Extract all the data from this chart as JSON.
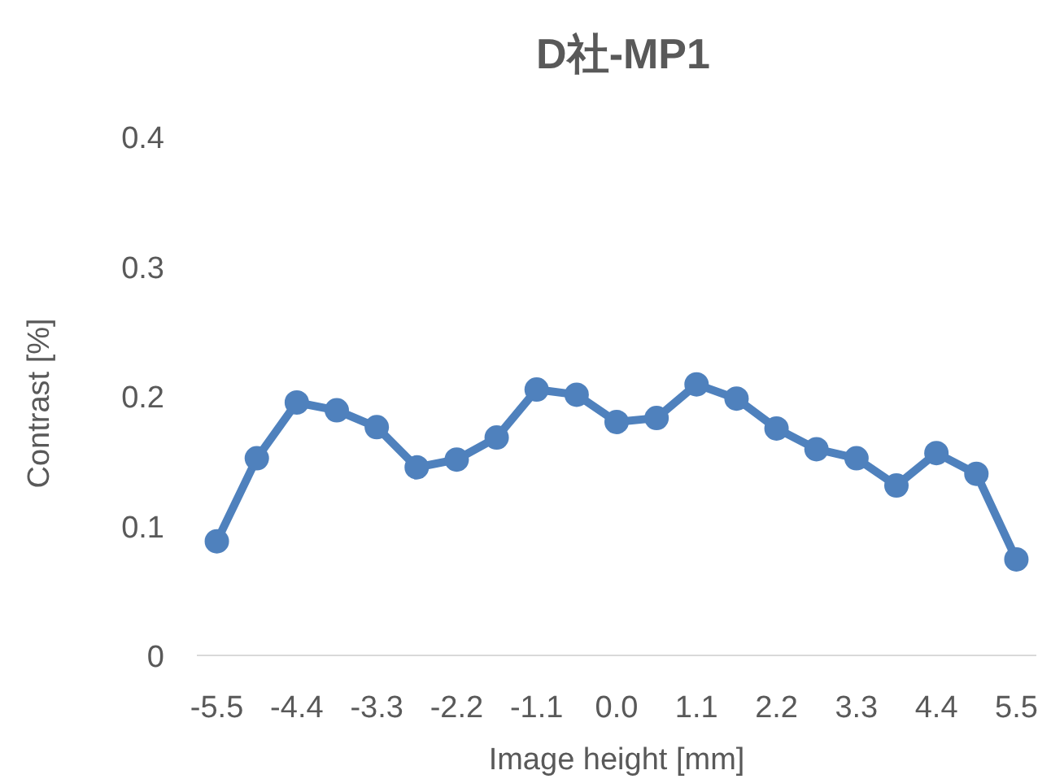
{
  "chart_data": {
    "type": "line",
    "title": "D社-MP1",
    "xlabel": "Image height [mm]",
    "ylabel": "Contrast [%]",
    "categories": [
      "-5.5",
      null,
      "-4.4",
      null,
      "-3.3",
      null,
      "-2.2",
      null,
      "-1.1",
      null,
      "0.0",
      null,
      "1.1",
      null,
      "2.2",
      null,
      "3.3",
      null,
      "4.4",
      null,
      "5.5"
    ],
    "series": [
      {
        "color": "#4f81bd",
        "values": [
          0.088,
          0.152,
          0.195,
          0.189,
          0.176,
          0.145,
          0.151,
          0.168,
          0.205,
          0.201,
          0.18,
          0.183,
          0.209,
          0.198,
          0.175,
          0.159,
          0.152,
          0.131,
          0.156,
          0.14,
          0.074
        ]
      }
    ],
    "ylim": [
      0,
      0.4
    ],
    "yticks": [
      0,
      0.1,
      0.2,
      0.3,
      0.4
    ],
    "marker": "circle",
    "line_style": "solid",
    "grid": false
  }
}
